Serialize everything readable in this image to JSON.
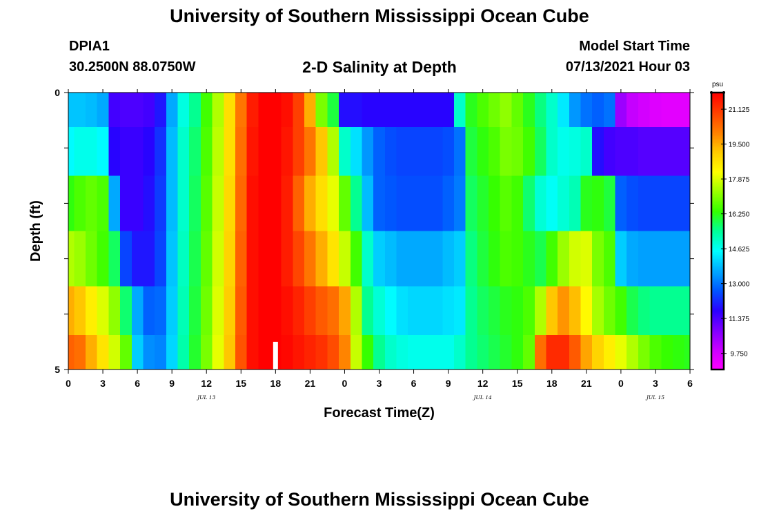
{
  "header": {
    "title": "University of Southern Mississippi Ocean Cube",
    "station": "DPIA1",
    "coordinates": "30.2500N  88.0750W",
    "subtitle": "2-D Salinity at Depth",
    "model_start_label": "Model Start Time",
    "model_start_value": "07/13/2021 Hour 03"
  },
  "footer": {
    "title": "University of Southern Mississippi Ocean Cube"
  },
  "chart_data": {
    "type": "heatmap",
    "title": "2-D Salinity at Depth",
    "xlabel": "Forecast Time(Z)",
    "ylabel": "Depth (ft)",
    "x_tick_labels": [
      "0",
      "3",
      "6",
      "9",
      "12",
      "15",
      "18",
      "21",
      "0",
      "3",
      "6",
      "9",
      "12",
      "15",
      "18",
      "21",
      "0",
      "3",
      "6"
    ],
    "x_date_labels": [
      {
        "label": "JUL 13",
        "at_hours": 12
      },
      {
        "label": "JUL 14",
        "at_hours": 36
      },
      {
        "label": "JUL 15",
        "at_hours": 51
      }
    ],
    "x_range_hours": [
      0,
      54
    ],
    "y_tick_labels": [
      "0",
      "5"
    ],
    "y_range_ft": [
      0,
      5
    ],
    "current_time_marker_hours": 18,
    "colorbar": {
      "unit": "psu",
      "tick_labels": [
        "21.125",
        "19.500",
        "17.875",
        "16.250",
        "14.625",
        "13.000",
        "11.375",
        "9.750"
      ],
      "tick_values": [
        21.125,
        19.5,
        17.875,
        16.25,
        14.625,
        13.0,
        11.375,
        9.75
      ],
      "range": [
        9.0,
        21.9
      ],
      "colors": [
        "#ff00ff",
        "#cc00ff",
        "#7f00ff",
        "#2a00ff",
        "#0055ff",
        "#00aaff",
        "#00ffff",
        "#00ff99",
        "#33ff00",
        "#99ff00",
        "#ffff00",
        "#ffcc00",
        "#ff7f00",
        "#ff4000",
        "#ff0000"
      ]
    },
    "depth_layers_ft": [
      0.25,
      1.0,
      2.0,
      3.0,
      4.0,
      4.75
    ],
    "time_hours": [
      0,
      1,
      2,
      3,
      4,
      5,
      6,
      7,
      8,
      9,
      10,
      11,
      12,
      13,
      14,
      15,
      16,
      17,
      18,
      19,
      20,
      21,
      22,
      23,
      24,
      25,
      26,
      27,
      28,
      29,
      30,
      31,
      32,
      33,
      34,
      35,
      36,
      37,
      38,
      39,
      40,
      41,
      42,
      43,
      44,
      45,
      46,
      47,
      48,
      49,
      50,
      51,
      52,
      53,
      54
    ],
    "salinity_psu": [
      [
        13.9,
        13.9,
        13.8,
        13.6,
        11.5,
        11.4,
        11.4,
        11.5,
        12.0,
        13.6,
        14.8,
        15.5,
        16.5,
        17.5,
        18.8,
        20.2,
        21.5,
        21.9,
        21.9,
        21.7,
        21.0,
        19.5,
        17.0,
        16.0,
        11.9,
        11.9,
        11.8,
        11.8,
        11.8,
        11.8,
        11.8,
        11.8,
        11.8,
        11.8,
        15.0,
        16.2,
        16.6,
        16.9,
        17.2,
        16.8,
        16.2,
        15.6,
        15.0,
        14.3,
        13.4,
        13.0,
        12.8,
        13.0,
        10.5,
        10.0,
        9.8,
        9.6,
        9.5,
        9.5,
        9.5
      ],
      [
        14.5,
        14.7,
        14.7,
        14.5,
        11.8,
        11.6,
        11.6,
        11.8,
        12.3,
        13.8,
        15.0,
        15.7,
        16.6,
        17.6,
        18.8,
        20.3,
        21.6,
        21.9,
        21.9,
        21.6,
        21.0,
        20.2,
        19.2,
        17.5,
        15.0,
        14.2,
        13.4,
        12.8,
        12.6,
        12.5,
        12.5,
        12.5,
        12.5,
        12.6,
        13.0,
        16.0,
        16.3,
        16.6,
        17.0,
        16.9,
        16.5,
        15.8,
        15.0,
        14.7,
        14.8,
        15.0,
        11.9,
        11.5,
        11.4,
        11.4,
        11.3,
        11.3,
        11.3,
        11.3,
        11.3
      ],
      [
        16.3,
        16.6,
        16.8,
        16.6,
        13.6,
        11.6,
        11.6,
        11.9,
        12.4,
        13.8,
        15.0,
        15.8,
        16.7,
        17.7,
        18.9,
        20.4,
        21.7,
        21.9,
        21.9,
        21.5,
        20.5,
        19.5,
        18.8,
        18.0,
        16.8,
        15.5,
        13.8,
        12.8,
        12.7,
        12.6,
        12.6,
        12.6,
        12.6,
        12.8,
        13.1,
        15.8,
        16.1,
        16.4,
        16.7,
        16.5,
        15.7,
        14.9,
        14.6,
        14.9,
        15.2,
        16.2,
        16.3,
        16.0,
        12.8,
        12.6,
        12.5,
        12.5,
        12.5,
        12.5,
        12.5
      ],
      [
        17.5,
        17.3,
        16.9,
        16.5,
        15.8,
        12.5,
        12.0,
        12.0,
        12.5,
        13.9,
        15.1,
        15.9,
        16.8,
        17.8,
        19.0,
        20.5,
        21.7,
        21.9,
        21.9,
        21.5,
        20.9,
        20.2,
        19.5,
        18.7,
        17.7,
        16.5,
        15.0,
        14.0,
        13.8,
        13.6,
        13.6,
        13.6,
        13.6,
        13.8,
        14.0,
        15.6,
        16.0,
        16.3,
        16.6,
        16.5,
        16.2,
        15.9,
        16.5,
        17.3,
        17.8,
        17.9,
        17.0,
        16.6,
        14.0,
        13.6,
        13.5,
        13.5,
        13.5,
        13.5,
        13.5
      ],
      [
        19.5,
        19.2,
        18.5,
        17.9,
        17.2,
        15.7,
        13.6,
        12.8,
        12.9,
        14.0,
        15.2,
        16.0,
        16.9,
        17.9,
        19.1,
        20.6,
        21.7,
        21.9,
        21.9,
        21.7,
        21.4,
        21.0,
        20.6,
        20.3,
        19.6,
        17.5,
        15.5,
        14.9,
        14.5,
        14.2,
        14.1,
        14.1,
        14.1,
        14.2,
        14.3,
        15.5,
        15.8,
        16.0,
        16.2,
        16.3,
        16.6,
        17.5,
        19.2,
        19.8,
        19.3,
        18.3,
        17.4,
        16.9,
        16.5,
        15.9,
        15.6,
        15.5,
        15.5,
        15.5,
        15.5
      ],
      [
        20.5,
        20.3,
        19.5,
        18.7,
        17.8,
        16.8,
        14.0,
        13.3,
        13.2,
        14.1,
        15.3,
        16.1,
        17.0,
        18.0,
        19.2,
        20.7,
        21.7,
        21.9,
        21.9,
        21.8,
        21.6,
        21.4,
        21.2,
        20.8,
        20.0,
        17.7,
        16.4,
        15.5,
        15.0,
        14.8,
        14.7,
        14.7,
        14.7,
        14.7,
        15.0,
        15.5,
        15.7,
        15.9,
        16.1,
        16.3,
        16.8,
        20.3,
        21.3,
        21.3,
        20.6,
        19.6,
        19.0,
        18.5,
        18.0,
        17.5,
        17.0,
        16.6,
        16.4,
        16.3,
        16.2
      ]
    ]
  }
}
